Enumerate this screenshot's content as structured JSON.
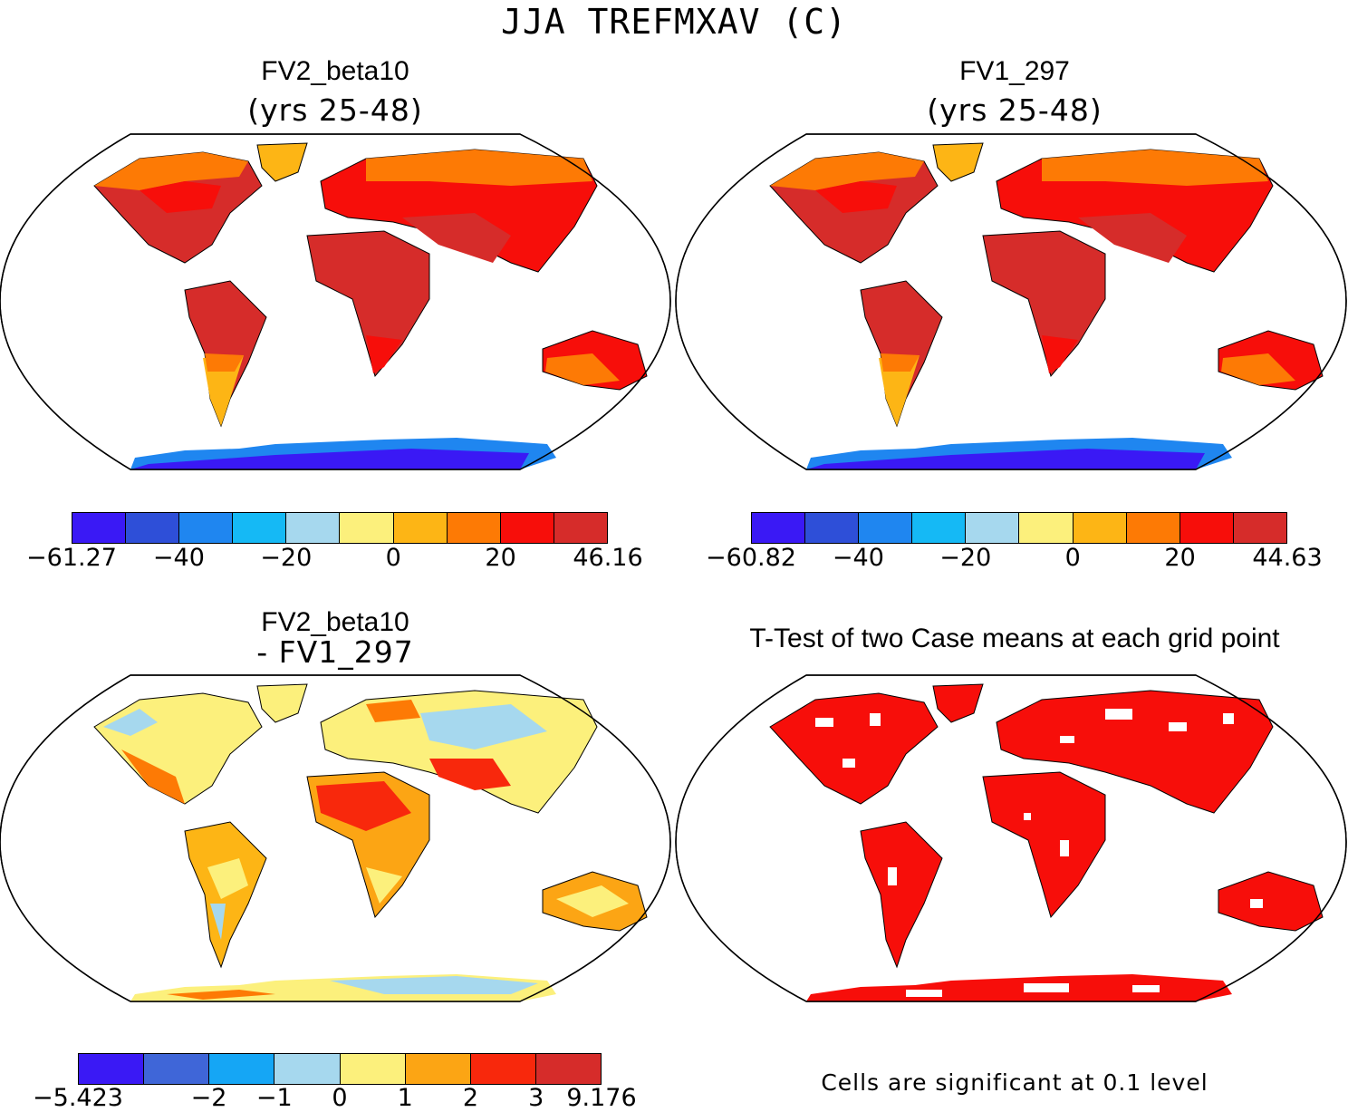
{
  "figure": {
    "title": "JJA TREFMXAV (C)"
  },
  "panels": {
    "top_left": {
      "title": "FV2_beta10",
      "subtitle": "(yrs 25-48)"
    },
    "top_right": {
      "title": "FV1_297",
      "subtitle": "(yrs 25-48)"
    },
    "bottom_left": {
      "title": "FV2_beta10",
      "subtitle": "- FV1_297"
    },
    "bottom_right": {
      "title": "T-Test of two Case means at each grid point",
      "note": "Cells are significant at 0.1 level"
    }
  },
  "colorbars": {
    "top_left": {
      "colors": [
        "#3a19f5",
        "#2e4fd8",
        "#1f86f0",
        "#15b9f5",
        "#a6d8ee",
        "#fcf07c",
        "#fdb515",
        "#fd7a05",
        "#f70e0a",
        "#d62c2a"
      ],
      "ticks": [
        "-61.27",
        "-40",
        "-20",
        "0",
        "20",
        "46.16"
      ]
    },
    "top_right": {
      "colors": [
        "#3a19f5",
        "#2e4fd8",
        "#1f86f0",
        "#15b9f5",
        "#a6d8ee",
        "#fcf07c",
        "#fdb515",
        "#fd7a05",
        "#f70e0a",
        "#d62c2a"
      ],
      "ticks": [
        "-60.82",
        "-40",
        "-20",
        "0",
        "20",
        "44.63"
      ]
    },
    "bottom_left": {
      "colors": [
        "#3a19f5",
        "#3f66d8",
        "#15a6f5",
        "#a6d8ee",
        "#fcf07c",
        "#fca514",
        "#f8280c",
        "#d62c2a"
      ],
      "ticks": [
        "-5.423",
        "-2",
        "-1",
        "0",
        "1",
        "2",
        "3",
        "9.176"
      ]
    }
  },
  "map_colors": {
    "hot": "#d62c2a",
    "red": "#f70e0a",
    "orange": "#fd7a05",
    "amber": "#fdb515",
    "yellow": "#fcf07c",
    "lightblue": "#a6d8ee",
    "cyan": "#15b9f5",
    "blue": "#1f86f0",
    "deep": "#3a19f5",
    "sig": "#f70e0a"
  }
}
